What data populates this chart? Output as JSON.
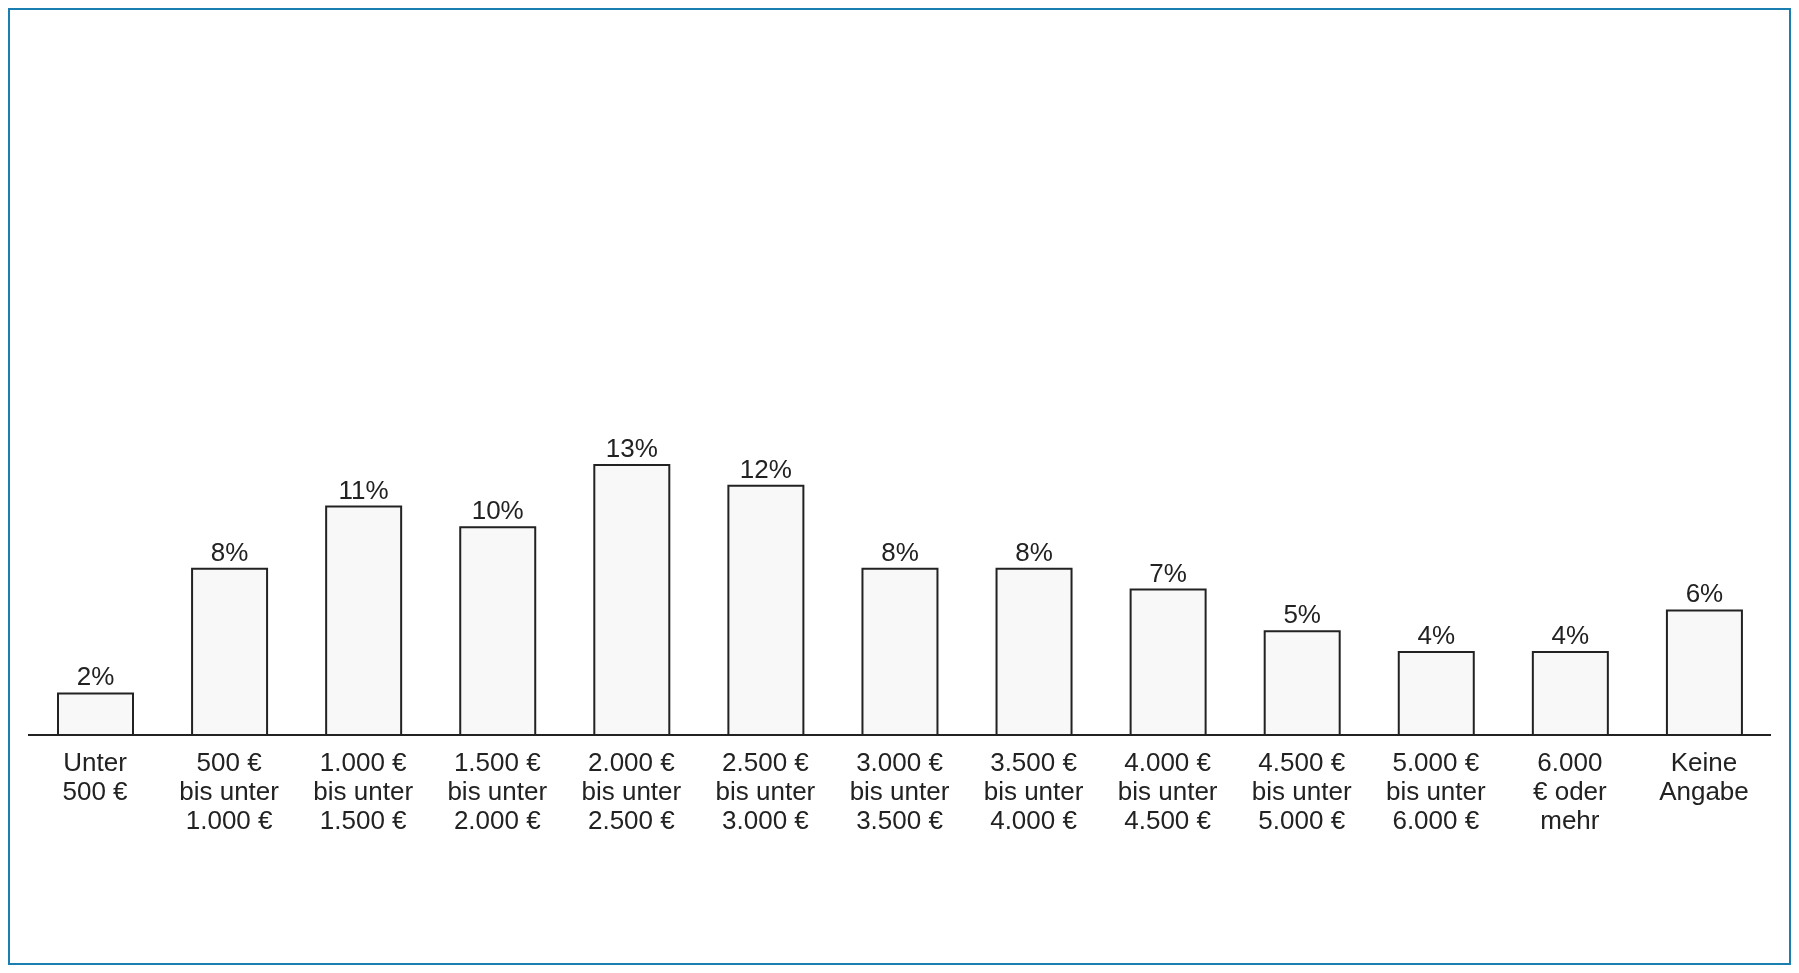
{
  "chart_data": {
    "type": "bar",
    "categories": [
      "Unter\n500 €",
      "500 €\nbis unter\n1.000 €",
      "1.000 €\nbis unter\n1.500 €",
      "1.500 €\nbis unter\n2.000 €",
      "2.000 €\nbis unter\n2.500 €",
      "2.500 €\nbis unter\n3.000 €",
      "3.000 €\nbis unter\n3.500 €",
      "3.500 €\nbis unter\n4.000 €",
      "4.000 €\nbis unter\n4.500 €",
      "4.500 €\nbis unter\n5.000 €",
      "5.000 €\nbis unter\n6.000 €",
      "6.000\n€ oder\nmehr",
      "Keine\nAngabe"
    ],
    "values": [
      2,
      8,
      11,
      10,
      13,
      12,
      8,
      8,
      7,
      5,
      4,
      4,
      6
    ],
    "value_labels": [
      "2%",
      "8%",
      "11%",
      "10%",
      "13%",
      "12%",
      "8%",
      "8%",
      "7%",
      "5%",
      "4%",
      "4%",
      "6%"
    ],
    "color": "#f8f8f8"
  }
}
